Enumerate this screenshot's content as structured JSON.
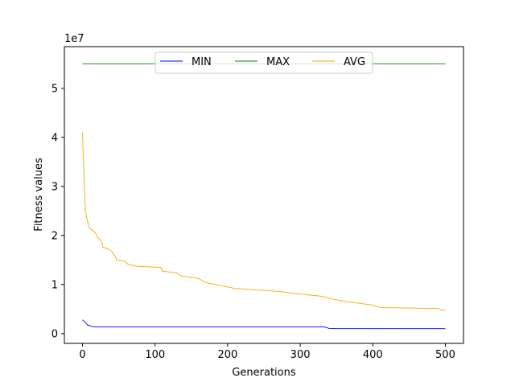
{
  "chart_data": {
    "type": "line",
    "xlabel": "Generations",
    "ylabel": "Fitness values",
    "y_offset_text": "1e7",
    "xlim": [
      -25,
      525
    ],
    "ylim": [
      -0.2,
      5.85
    ],
    "x_ticks": [
      0,
      100,
      200,
      300,
      400,
      500
    ],
    "y_ticks": [
      0,
      1,
      2,
      3,
      4,
      5
    ],
    "grid": false,
    "legend_placement": "upper center",
    "series": [
      {
        "name": "MIN",
        "color": "#0000ff",
        "points": [
          [
            0,
            0.28
          ],
          [
            3,
            0.24
          ],
          [
            5,
            0.2
          ],
          [
            8,
            0.17
          ],
          [
            12,
            0.15
          ],
          [
            16,
            0.14
          ],
          [
            20,
            0.135
          ],
          [
            50,
            0.135
          ],
          [
            100,
            0.135
          ],
          [
            200,
            0.135
          ],
          [
            300,
            0.135
          ],
          [
            333,
            0.135
          ],
          [
            340,
            0.105
          ],
          [
            350,
            0.1
          ],
          [
            400,
            0.1
          ],
          [
            450,
            0.1
          ],
          [
            500,
            0.1
          ]
        ]
      },
      {
        "name": "MAX",
        "color": "#008000",
        "points": [
          [
            0,
            5.5
          ],
          [
            500,
            5.5
          ]
        ]
      },
      {
        "name": "AVG",
        "color": "#ffa500",
        "points": [
          [
            0,
            4.1
          ],
          [
            1,
            3.6
          ],
          [
            2,
            3.2
          ],
          [
            3,
            2.8
          ],
          [
            4,
            2.5
          ],
          [
            6,
            2.35
          ],
          [
            8,
            2.22
          ],
          [
            10,
            2.15
          ],
          [
            14,
            2.1
          ],
          [
            18,
            2.05
          ],
          [
            20,
            1.97
          ],
          [
            25,
            1.9
          ],
          [
            27,
            1.85
          ],
          [
            28,
            1.76
          ],
          [
            35,
            1.73
          ],
          [
            40,
            1.68
          ],
          [
            45,
            1.58
          ],
          [
            47,
            1.5
          ],
          [
            58,
            1.48
          ],
          [
            62,
            1.42
          ],
          [
            75,
            1.37
          ],
          [
            108,
            1.35
          ],
          [
            110,
            1.27
          ],
          [
            130,
            1.24
          ],
          [
            135,
            1.18
          ],
          [
            160,
            1.12
          ],
          [
            170,
            1.04
          ],
          [
            190,
            0.98
          ],
          [
            210,
            0.92
          ],
          [
            270,
            0.86
          ],
          [
            290,
            0.82
          ],
          [
            330,
            0.76
          ],
          [
            345,
            0.7
          ],
          [
            365,
            0.65
          ],
          [
            400,
            0.58
          ],
          [
            410,
            0.53
          ],
          [
            490,
            0.51
          ],
          [
            495,
            0.48
          ],
          [
            500,
            0.48
          ]
        ]
      }
    ]
  }
}
